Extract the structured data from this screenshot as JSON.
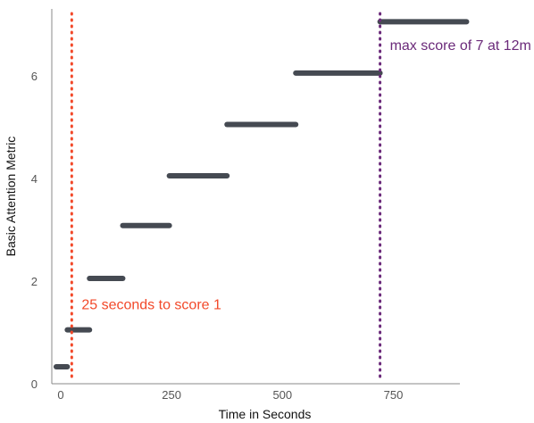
{
  "chart_data": {
    "type": "step",
    "title": "",
    "xlabel": "Time in Seconds",
    "ylabel": "Basic Attention Metric",
    "xlim": [
      -20,
      900
    ],
    "ylim": [
      0,
      7.3
    ],
    "x_ticks": [
      0,
      250,
      500,
      750
    ],
    "y_ticks": [
      0,
      2,
      4,
      6
    ],
    "x_tick_labels": [
      "0",
      "250",
      "500",
      "750"
    ],
    "y_tick_labels": [
      "0",
      "2",
      "4",
      "6"
    ],
    "grid": false,
    "segments": [
      {
        "x_start": -10,
        "x_end": 15,
        "y": 0.33
      },
      {
        "x_start": 15,
        "x_end": 65,
        "y": 1.05
      },
      {
        "x_start": 65,
        "x_end": 140,
        "y": 2.05
      },
      {
        "x_start": 140,
        "x_end": 245,
        "y": 3.08
      },
      {
        "x_start": 245,
        "x_end": 375,
        "y": 4.05
      },
      {
        "x_start": 375,
        "x_end": 530,
        "y": 5.05
      },
      {
        "x_start": 530,
        "x_end": 720,
        "y": 6.05
      },
      {
        "x_start": 720,
        "x_end": 915,
        "y": 7.05
      }
    ],
    "reference_lines": [
      {
        "x": 25,
        "label": "25 seconds to score 1",
        "color": "#f2492a",
        "label_y": 1.45
      },
      {
        "x": 720,
        "label": "max score of 7 at 12m",
        "color": "#6b2a7a",
        "label_y": 6.5
      }
    ],
    "colors": {
      "segment": "#454a52",
      "axis": "#888888"
    }
  }
}
